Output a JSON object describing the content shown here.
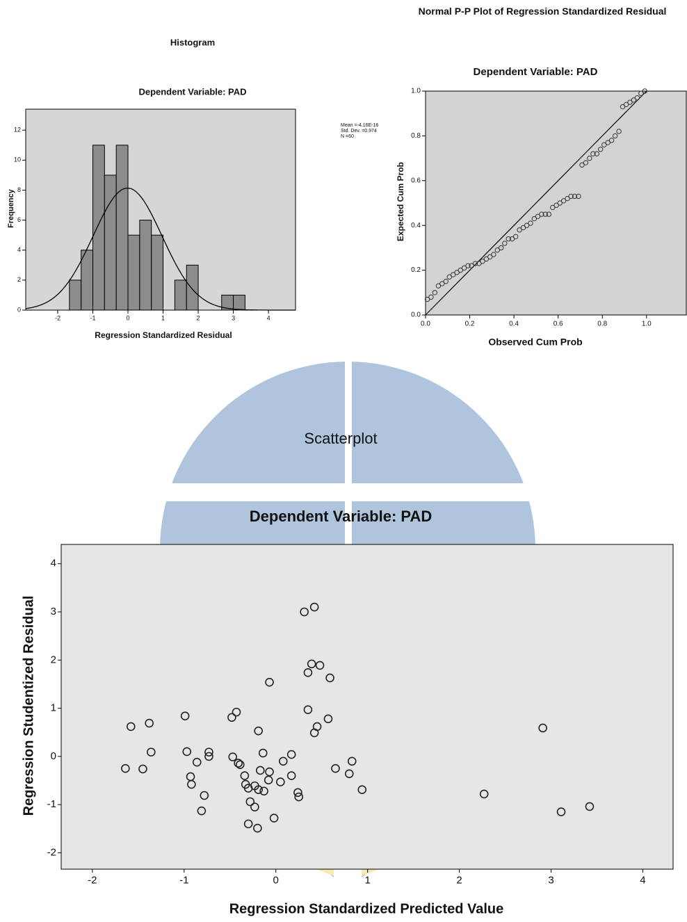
{
  "chart_data": [
    {
      "type": "histogram",
      "title": "Histogram",
      "subtitle": "Dependent Variable: PAD",
      "x_label": "Regression Standardized Residual",
      "y_label": "Frequency",
      "bins": [
        -1.667,
        -1.333,
        -1.0,
        -0.667,
        -0.333,
        0,
        0.333,
        0.667,
        1.0,
        1.333,
        1.667,
        2.0,
        2.333,
        2.667,
        3.0,
        3.333
      ],
      "values": [
        2,
        4,
        11,
        9,
        11,
        5,
        6,
        5,
        0,
        2,
        3,
        0,
        0,
        1,
        1
      ],
      "color": "#8c8c8c",
      "plot_background": "#d6d6d6",
      "normal_curve": true,
      "stats": [
        "Mean =-4.16E-16",
        "Std. Dev. =0.974",
        "N =60"
      ],
      "xlim": [
        -2.91,
        4.77
      ],
      "xticks": [
        -2,
        -1,
        0,
        1,
        2,
        3,
        4
      ],
      "ylim": [
        0,
        13.4
      ],
      "yticks": [
        0,
        2,
        4,
        6,
        8,
        10,
        12
      ]
    },
    {
      "type": "scatter",
      "title": "Normal P-P Plot of Regression Standardized Residual",
      "subtitle": "Dependent Variable: PAD",
      "x_label": "Observed Cum Prob",
      "y_label": "Expected Cum Prob",
      "x": [
        0.008,
        0.025,
        0.042,
        0.058,
        0.075,
        0.092,
        0.108,
        0.125,
        0.142,
        0.158,
        0.175,
        0.192,
        0.208,
        0.225,
        0.242,
        0.258,
        0.275,
        0.292,
        0.308,
        0.325,
        0.342,
        0.358,
        0.375,
        0.392,
        0.408,
        0.425,
        0.442,
        0.458,
        0.475,
        0.492,
        0.508,
        0.525,
        0.542,
        0.558,
        0.575,
        0.592,
        0.608,
        0.625,
        0.642,
        0.658,
        0.675,
        0.692,
        0.708,
        0.725,
        0.742,
        0.758,
        0.775,
        0.792,
        0.808,
        0.825,
        0.842,
        0.858,
        0.875,
        0.892,
        0.908,
        0.925,
        0.942,
        0.958,
        0.975,
        0.992
      ],
      "values": [
        0.07,
        0.08,
        0.1,
        0.13,
        0.14,
        0.15,
        0.17,
        0.18,
        0.19,
        0.2,
        0.21,
        0.22,
        0.22,
        0.23,
        0.23,
        0.24,
        0.25,
        0.26,
        0.27,
        0.29,
        0.3,
        0.32,
        0.34,
        0.34,
        0.35,
        0.38,
        0.39,
        0.4,
        0.41,
        0.43,
        0.44,
        0.45,
        0.45,
        0.45,
        0.48,
        0.49,
        0.5,
        0.51,
        0.52,
        0.53,
        0.53,
        0.53,
        0.67,
        0.68,
        0.7,
        0.72,
        0.72,
        0.74,
        0.76,
        0.77,
        0.78,
        0.8,
        0.82,
        0.93,
        0.94,
        0.95,
        0.96,
        0.97,
        0.99,
        1.0
      ],
      "color": "#333333",
      "plot_background": "#d3d3d3",
      "reference_line": true,
      "xlim": [
        0,
        1.18
      ],
      "xticks": [
        {
          "value": 0,
          "label": "0.0"
        },
        0.2,
        0.4,
        0.6,
        0.8,
        {
          "value": 1,
          "label": "1.0"
        }
      ],
      "ylim": [
        0,
        1
      ],
      "yticks": [
        {
          "value": 0,
          "label": "0.0"
        },
        0.2,
        0.4,
        0.6,
        0.8,
        {
          "value": 1,
          "label": "1.0"
        }
      ]
    },
    {
      "type": "scatter",
      "title": "Scatterplot",
      "subtitle": "Dependent Variable: PAD",
      "x_label": "Regression Standardized Predicted Value",
      "y_label": "Regression Studentized Residual",
      "x": [
        0.31,
        0.42,
        0.39,
        0.48,
        0.35,
        0.59,
        -0.07,
        0.35,
        0.57,
        -0.43,
        -0.48,
        -0.99,
        0.45,
        0.42,
        -1.58,
        -1.38,
        -0.19,
        2.91,
        -1.36,
        -0.97,
        -0.73,
        -0.73,
        -0.47,
        -0.14,
        0.17,
        -0.86,
        -0.41,
        -0.39,
        0.08,
        0.83,
        -1.64,
        -1.45,
        -0.93,
        -0.92,
        -0.17,
        0.17,
        0.65,
        0.8,
        -0.34,
        -0.08,
        0.05,
        -0.33,
        -0.3,
        -0.19,
        -0.13,
        0.24,
        0.25,
        -0.78,
        -0.28,
        -0.23,
        0.94,
        2.27,
        -0.81,
        -0.02,
        -0.3,
        -0.2,
        3.11,
        3.42,
        -0.23,
        -0.07
      ],
      "values": [
        3.0,
        3.1,
        1.92,
        1.89,
        1.74,
        1.63,
        1.54,
        0.97,
        0.78,
        0.92,
        0.81,
        0.84,
        0.62,
        0.49,
        0.62,
        0.69,
        0.53,
        0.59,
        0.09,
        0.1,
        0.09,
        0.0,
        -0.01,
        0.07,
        0.04,
        -0.12,
        -0.14,
        -0.17,
        -0.1,
        -0.1,
        -0.25,
        -0.26,
        -0.42,
        -0.58,
        -0.29,
        -0.4,
        -0.25,
        -0.36,
        -0.4,
        -0.49,
        -0.53,
        -0.58,
        -0.66,
        -0.69,
        -0.72,
        -0.75,
        -0.84,
        -0.81,
        -0.94,
        -1.05,
        -0.69,
        -0.78,
        -1.13,
        -1.28,
        -1.4,
        -1.49,
        -1.15,
        -1.04,
        -0.61,
        -0.32
      ],
      "color": "#222222",
      "plot_background": "#e6e6e6",
      "reference_line": false,
      "xlim": [
        -2.34,
        4.33
      ],
      "xticks": [
        -2,
        -1,
        0,
        1,
        2,
        3,
        4
      ],
      "ylim": [
        -2.34,
        4.4
      ],
      "yticks": [
        -2,
        -1,
        0,
        1,
        2,
        3,
        4
      ]
    }
  ]
}
